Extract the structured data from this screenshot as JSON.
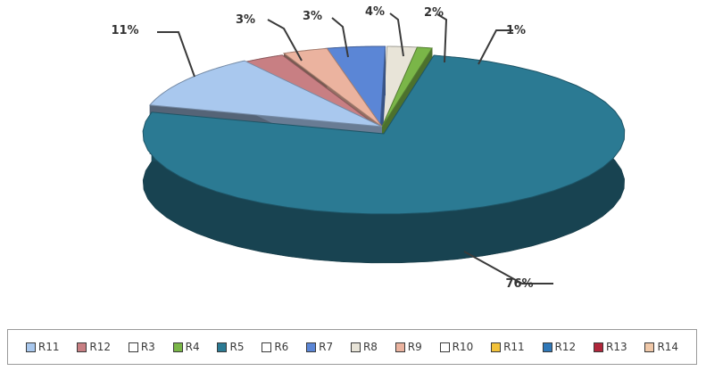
{
  "chart_data": {
    "type": "pie",
    "style": "3d-exploded",
    "slices": [
      {
        "label": "R5",
        "value": 76,
        "value_label": "76%",
        "color": "#2b7a93"
      },
      {
        "label": "R11",
        "value": 11,
        "value_label": "11%",
        "color": "#a9c8ee"
      },
      {
        "label": "R12",
        "value": 3,
        "value_label": "3%",
        "color": "#c87f83"
      },
      {
        "label": "R9",
        "value": 3,
        "value_label": "3%",
        "color": "#ebb39f"
      },
      {
        "label": "R7",
        "value": 4,
        "value_label": "4%",
        "color": "#5b86d6"
      },
      {
        "label": "R8",
        "value": 2,
        "value_label": "2%",
        "color": "#e8e4d8"
      },
      {
        "label": "R4",
        "value": 1,
        "value_label": "1%",
        "color": "#7ab648"
      }
    ],
    "legend": {
      "placement": "bottom",
      "entries": [
        {
          "label": "R11",
          "color": "#a9c8ee"
        },
        {
          "label": "R12",
          "color": "#c87f83"
        },
        {
          "label": "R3",
          "color": "#ffffff"
        },
        {
          "label": "R4",
          "color": "#7ab648"
        },
        {
          "label": "R5",
          "color": "#2b7a93"
        },
        {
          "label": "R6",
          "color": "#ffffff"
        },
        {
          "label": "R7",
          "color": "#5b86d6"
        },
        {
          "label": "R8",
          "color": "#e8e4d8"
        },
        {
          "label": "R9",
          "color": "#ebb39f"
        },
        {
          "label": "R10",
          "color": "#ffffff"
        },
        {
          "label": "R11",
          "color": "#f2c23a"
        },
        {
          "label": "R12",
          "color": "#2f78b8"
        },
        {
          "label": "R13",
          "color": "#b0263a"
        },
        {
          "label": "R14",
          "color": "#f0c8a8"
        }
      ]
    }
  }
}
